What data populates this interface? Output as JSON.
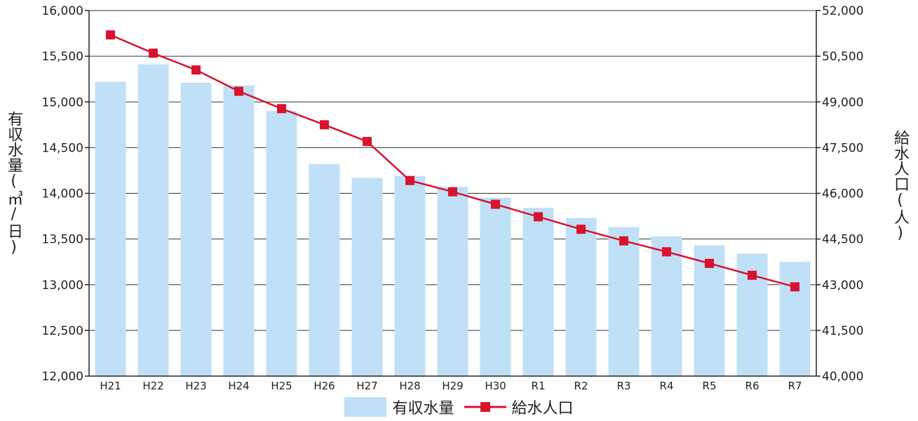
{
  "chart_data": {
    "type": "bar",
    "categories": [
      "H21",
      "H22",
      "H23",
      "H24",
      "H25",
      "H26",
      "H27",
      "H28",
      "H29",
      "H30",
      "R1",
      "R2",
      "R3",
      "R4",
      "R5",
      "R6",
      "R7"
    ],
    "series": [
      {
        "name": "有収水量",
        "type": "bar",
        "axis": "left",
        "color": "#bfe0f6",
        "values": [
          15220,
          15410,
          15210,
          15180,
          14900,
          14320,
          14170,
          14190,
          14070,
          13950,
          13840,
          13730,
          13630,
          13530,
          13430,
          13340,
          13250
        ]
      },
      {
        "name": "給水人口",
        "type": "line",
        "axis": "right",
        "color": "#d9132e",
        "values": [
          51200,
          50600,
          50050,
          49350,
          48780,
          48250,
          47700,
          46420,
          46050,
          45640,
          45230,
          44820,
          44440,
          44080,
          43700,
          43310,
          42930
        ]
      }
    ],
    "yleft": {
      "label": "有収水量(㎥/日)",
      "range": [
        12000,
        16000
      ],
      "ticks": [
        "16,000",
        "15,500",
        "15,000",
        "14,500",
        "14,000",
        "13,500",
        "13,000",
        "12,500",
        "12,000"
      ]
    },
    "yright": {
      "label": "給水人口(人)",
      "range": [
        40000,
        52000
      ],
      "ticks": [
        "52,000",
        "50,500",
        "49,000",
        "47,500",
        "46,000",
        "44,500",
        "43,000",
        "41,500",
        "40,000"
      ]
    },
    "grid": true,
    "legend_position": "bottom"
  }
}
